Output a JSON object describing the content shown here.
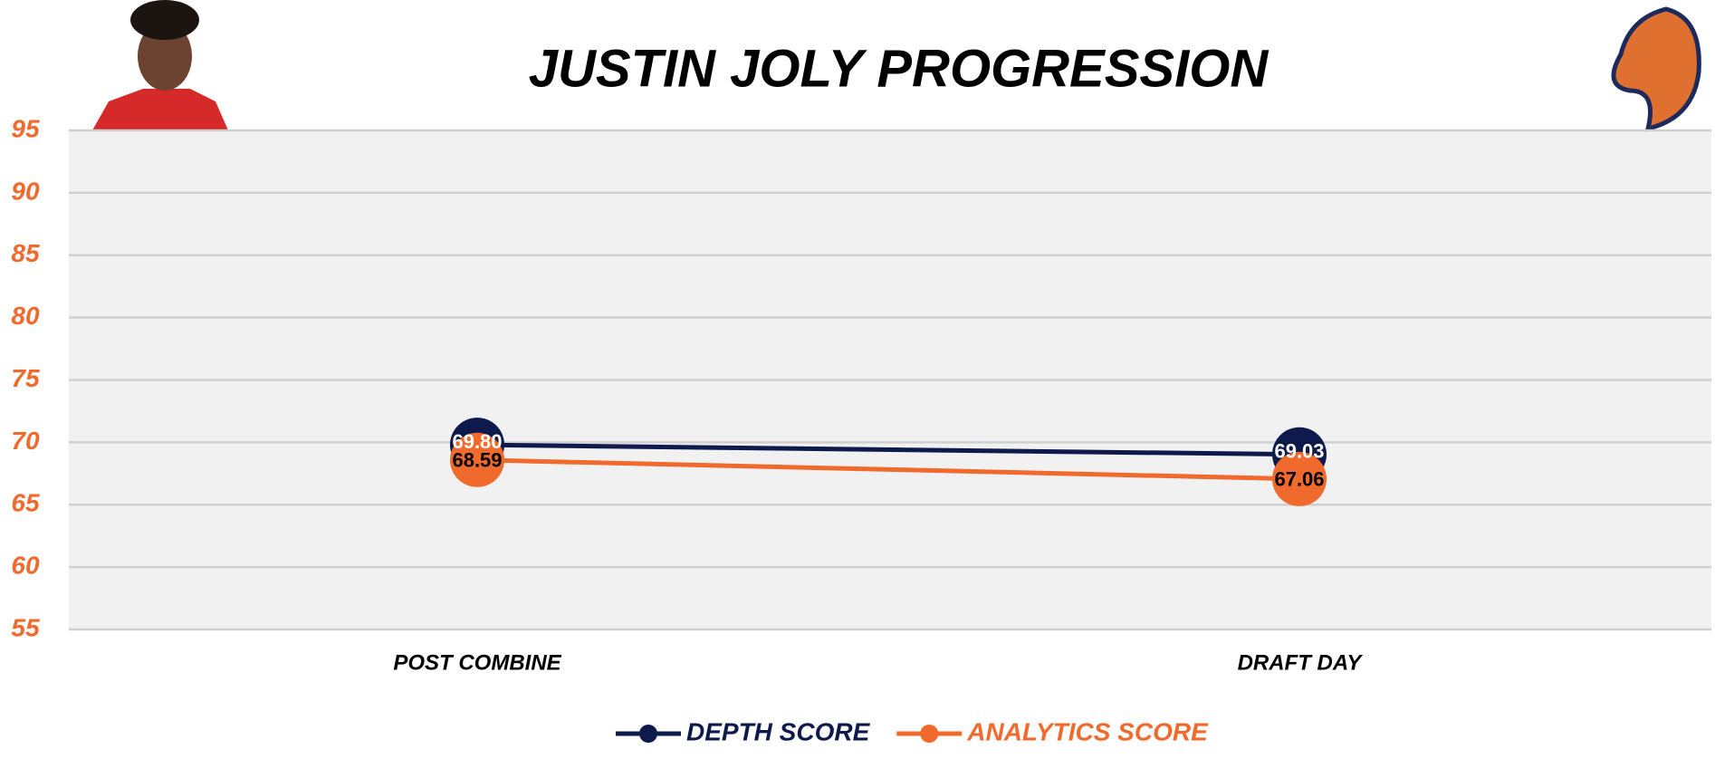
{
  "chart_data": {
    "type": "line",
    "title": "JUSTIN JOLY PROGRESSION",
    "categories": [
      "POST COMBINE",
      "DRAFT DAY"
    ],
    "series": [
      {
        "name": "DEPTH SCORE",
        "color": "#0e1a4b",
        "values": [
          69.8,
          69.03
        ],
        "value_labels": [
          "69.80",
          "69.03"
        ]
      },
      {
        "name": "ANALYTICS SCORE",
        "color": "#ef6a2c",
        "values": [
          68.59,
          67.06
        ],
        "value_labels": [
          "68.59",
          "67.06"
        ]
      }
    ],
    "ylim": [
      55,
      95
    ],
    "yticks": [
      55,
      60,
      65,
      70,
      75,
      80,
      85,
      90,
      95
    ],
    "grid": true,
    "legend": "bottom"
  }
}
